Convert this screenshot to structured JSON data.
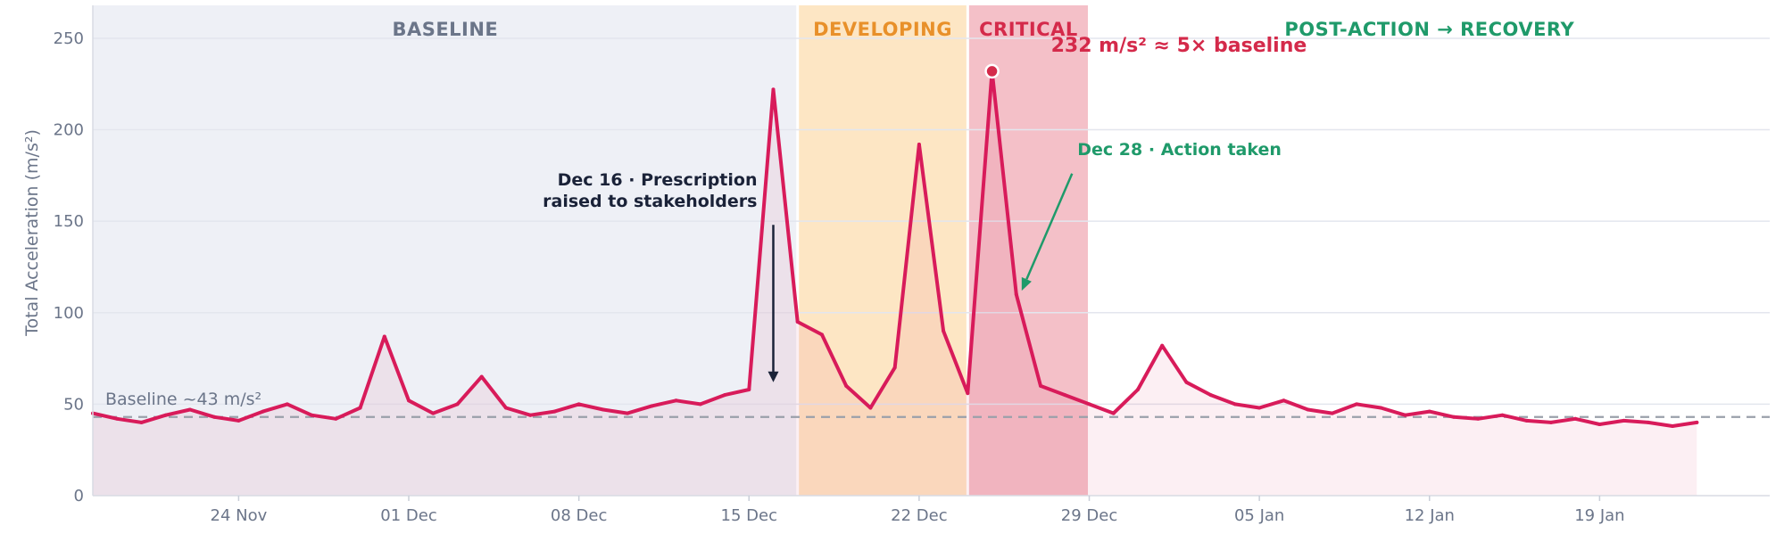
{
  "chart_data": {
    "type": "area",
    "ylabel": "Total Acceleration  (m/s²)",
    "ylim": [
      0,
      268
    ],
    "x_range": [
      "2025-11-18",
      "2026-01-26"
    ],
    "y_ticks": [
      0,
      50,
      100,
      150,
      200,
      250
    ],
    "x_ticks": [
      {
        "date": "2025-11-24",
        "label": "24 Nov"
      },
      {
        "date": "2025-12-01",
        "label": "01 Dec"
      },
      {
        "date": "2025-12-08",
        "label": "08 Dec"
      },
      {
        "date": "2025-12-15",
        "label": "15 Dec"
      },
      {
        "date": "2025-12-22",
        "label": "22 Dec"
      },
      {
        "date": "2025-12-29",
        "label": "29 Dec"
      },
      {
        "date": "2026-01-05",
        "label": "05 Jan"
      },
      {
        "date": "2026-01-12",
        "label": "12 Jan"
      },
      {
        "date": "2026-01-19",
        "label": "19 Jan"
      }
    ],
    "grid": true,
    "baseline": {
      "value": 43,
      "label": "Baseline  ~43 m/s²"
    },
    "phases": [
      {
        "name": "BASELINE",
        "start": "2025-11-18",
        "end": "2025-12-17",
        "color": "#eef0f6",
        "label_color": "#6b7589"
      },
      {
        "name": "DEVELOPING",
        "start": "2025-12-17",
        "end": "2025-12-24",
        "color": "#fde6c4",
        "label_color": "#e8902a"
      },
      {
        "name": "CRITICAL",
        "start": "2025-12-24",
        "end": "2025-12-29",
        "color": "#f4c0c8",
        "label_color": "#d42a4a"
      },
      {
        "name": "POST-ACTION  →  RECOVERY",
        "start": "2025-12-29",
        "end": "2026-01-26",
        "color": "#ffffff",
        "label_color": "#1f9a6a"
      }
    ],
    "series": [
      {
        "color": "#d81b5a",
        "points": [
          [
            "2025-11-18",
            45
          ],
          [
            "2025-11-19",
            42
          ],
          [
            "2025-11-20",
            40
          ],
          [
            "2025-11-21",
            44
          ],
          [
            "2025-11-22",
            47
          ],
          [
            "2025-11-23",
            43
          ],
          [
            "2025-11-24",
            41
          ],
          [
            "2025-11-25",
            46
          ],
          [
            "2025-11-26",
            50
          ],
          [
            "2025-11-27",
            44
          ],
          [
            "2025-11-28",
            42
          ],
          [
            "2025-11-29",
            48
          ],
          [
            "2025-11-30",
            87
          ],
          [
            "2025-12-01",
            52
          ],
          [
            "2025-12-02",
            45
          ],
          [
            "2025-12-03",
            50
          ],
          [
            "2025-12-04",
            65
          ],
          [
            "2025-12-05",
            48
          ],
          [
            "2025-12-06",
            44
          ],
          [
            "2025-12-07",
            46
          ],
          [
            "2025-12-08",
            50
          ],
          [
            "2025-12-09",
            47
          ],
          [
            "2025-12-10",
            45
          ],
          [
            "2025-12-11",
            49
          ],
          [
            "2025-12-12",
            52
          ],
          [
            "2025-12-13",
            50
          ],
          [
            "2025-12-14",
            55
          ],
          [
            "2025-12-15",
            58
          ],
          [
            "2025-12-16",
            222
          ],
          [
            "2025-12-17",
            95
          ],
          [
            "2025-12-18",
            88
          ],
          [
            "2025-12-19",
            60
          ],
          [
            "2025-12-20",
            48
          ],
          [
            "2025-12-21",
            70
          ],
          [
            "2025-12-22",
            192
          ],
          [
            "2025-12-23",
            90
          ],
          [
            "2025-12-24",
            56
          ],
          [
            "2025-12-25",
            232
          ],
          [
            "2025-12-26",
            110
          ],
          [
            "2025-12-27",
            60
          ],
          [
            "2025-12-28",
            55
          ],
          [
            "2025-12-29",
            50
          ],
          [
            "2025-12-30",
            45
          ],
          [
            "2025-12-31",
            58
          ],
          [
            "2026-01-01",
            82
          ],
          [
            "2026-01-02",
            62
          ],
          [
            "2026-01-03",
            55
          ],
          [
            "2026-01-04",
            50
          ],
          [
            "2026-01-05",
            48
          ],
          [
            "2026-01-06",
            52
          ],
          [
            "2026-01-07",
            47
          ],
          [
            "2026-01-08",
            45
          ],
          [
            "2026-01-09",
            50
          ],
          [
            "2026-01-10",
            48
          ],
          [
            "2026-01-11",
            44
          ],
          [
            "2026-01-12",
            46
          ],
          [
            "2026-01-13",
            43
          ],
          [
            "2026-01-14",
            42
          ],
          [
            "2026-01-15",
            44
          ],
          [
            "2026-01-16",
            41
          ],
          [
            "2026-01-17",
            40
          ],
          [
            "2026-01-18",
            42
          ],
          [
            "2026-01-19",
            39
          ],
          [
            "2026-01-20",
            41
          ],
          [
            "2026-01-21",
            40
          ],
          [
            "2026-01-22",
            38
          ],
          [
            "2026-01-23",
            40
          ]
        ]
      }
    ],
    "peak": {
      "date": "2025-12-25",
      "value": 232
    },
    "annotations": {
      "peak_text": "232 m/s²   ≈ 5× baseline",
      "prescription_line1": "Dec 16  ·  Prescription",
      "prescription_line2": "raised to stakeholders",
      "prescription_arrow": {
        "date": "2025-12-16",
        "from": 148,
        "to": 62
      },
      "action_text": "Dec 28  ·  Action taken",
      "action_arrow": {
        "from_date": "2025-12-28",
        "from_value": 176,
        "to_date": "2025-12-26",
        "to_value": 112
      },
      "colors": {
        "peak": "#d42a4a",
        "prescription": "#1a2238",
        "action": "#1f9a6a"
      }
    }
  }
}
